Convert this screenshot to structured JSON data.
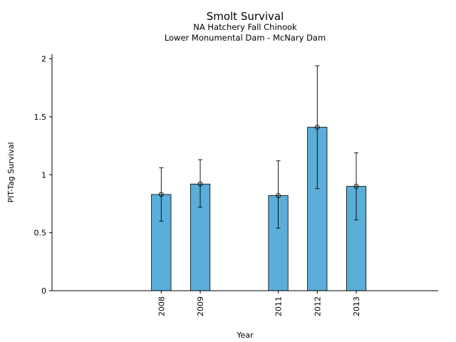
{
  "chart_data": {
    "type": "bar",
    "title": "Smolt Survival",
    "subtitle_lines": [
      "NA Hatchery Fall Chinook",
      "Lower Monumental Dam - McNary Dam"
    ],
    "xlabel": "Year",
    "ylabel": "PIT-Tag Survival",
    "x_range": [
      2005.2,
      2015.1
    ],
    "ylim": [
      0,
      2.04
    ],
    "y_ticks": [
      0,
      0.5,
      1,
      1.5,
      2
    ],
    "y_tick_labels": [
      "0",
      "0.5",
      "1",
      "1.5",
      "2"
    ],
    "bar_width_years": 0.5,
    "bar_color": "#5BAED8",
    "grid": false,
    "bars": [
      {
        "year": 2008,
        "label": "2008",
        "value": 0.83,
        "err_low": 0.6,
        "err_high": 1.06
      },
      {
        "year": 2009,
        "label": "2009",
        "value": 0.92,
        "err_low": 0.72,
        "err_high": 1.13
      },
      {
        "year": 2011,
        "label": "2011",
        "value": 0.82,
        "err_low": 0.54,
        "err_high": 1.12
      },
      {
        "year": 2012,
        "label": "2012",
        "value": 1.41,
        "err_low": 0.88,
        "err_high": 1.94
      },
      {
        "year": 2013,
        "label": "2013",
        "value": 0.9,
        "err_low": 0.61,
        "err_high": 1.19
      }
    ]
  }
}
